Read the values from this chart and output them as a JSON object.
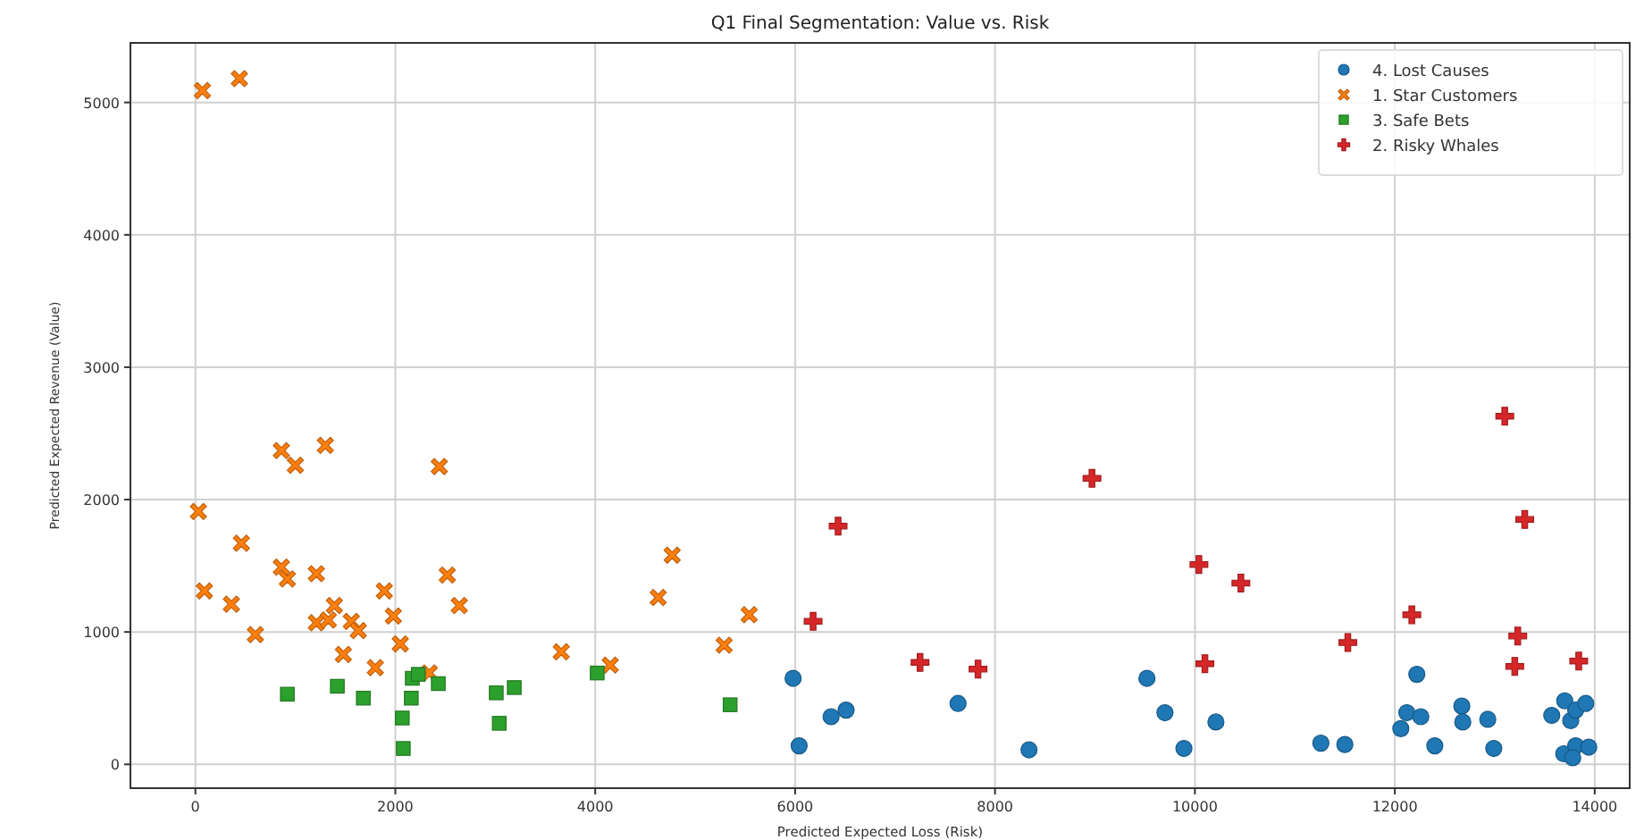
{
  "chart_data": {
    "type": "scatter",
    "title": "Q1 Final Segmentation: Value vs. Risk",
    "xlabel": "Predicted Expected Loss (Risk)",
    "ylabel": "Predicted Expected Revenue (Value)",
    "xlim": [
      -650,
      14350
    ],
    "ylim": [
      -180,
      5450
    ],
    "xticks": [
      0,
      2000,
      4000,
      6000,
      8000,
      10000,
      12000,
      14000
    ],
    "yticks": [
      0,
      1000,
      2000,
      3000,
      4000,
      5000
    ],
    "grid": true,
    "legend": "top right",
    "series": [
      {
        "name": "4. Lost Causes",
        "color": "#1f77b4",
        "marker": "circle",
        "x": [
          5980,
          6040,
          6360,
          6510,
          7630,
          8340,
          9520,
          9700,
          9890,
          10210,
          11260,
          11500,
          12060,
          12120,
          12260,
          12220,
          12400,
          12670,
          12680,
          12930,
          12990,
          13570,
          13700,
          13760,
          13810,
          13910,
          13690,
          13810,
          13940,
          13780
        ],
        "values": [
          650,
          140,
          360,
          410,
          460,
          110,
          650,
          390,
          120,
          320,
          160,
          150,
          270,
          390,
          360,
          680,
          140,
          440,
          320,
          340,
          120,
          370,
          480,
          330,
          410,
          460,
          80,
          140,
          130,
          50
        ]
      },
      {
        "name": "1. Star Customers",
        "color": "#ff7f0e",
        "marker": "x",
        "x": [
          70,
          440,
          860,
          1000,
          1300,
          2440,
          30,
          460,
          860,
          920,
          1210,
          90,
          360,
          600,
          1390,
          1210,
          1330,
          1560,
          1630,
          1480,
          1890,
          1980,
          2050,
          1800,
          2520,
          2640,
          2340,
          3660,
          4150,
          4630,
          4770,
          5290,
          5540
        ],
        "values": [
          5090,
          5180,
          2370,
          2260,
          2410,
          2250,
          1910,
          1670,
          1490,
          1400,
          1440,
          1310,
          1210,
          980,
          1200,
          1070,
          1090,
          1080,
          1010,
          830,
          1310,
          1120,
          910,
          730,
          1430,
          1200,
          690,
          850,
          750,
          1260,
          1580,
          900,
          1130
        ]
      },
      {
        "name": "3. Safe Bets",
        "color": "#2ca02c",
        "marker": "square",
        "x": [
          920,
          1420,
          1680,
          2070,
          2080,
          2160,
          2170,
          2230,
          2430,
          3010,
          3190,
          3040,
          4020,
          5350
        ],
        "values": [
          530,
          590,
          500,
          350,
          120,
          500,
          650,
          680,
          610,
          540,
          580,
          310,
          690,
          450
        ]
      },
      {
        "name": "2. Risky Whales",
        "color": "#d62728",
        "marker": "cross",
        "x": [
          6180,
          6430,
          7250,
          7830,
          8970,
          10040,
          10100,
          10460,
          11530,
          12170,
          13100,
          13300,
          13230,
          13200,
          13840
        ],
        "values": [
          1080,
          1800,
          770,
          720,
          2160,
          1510,
          760,
          1370,
          920,
          1130,
          2630,
          1850,
          970,
          740,
          780
        ]
      }
    ]
  }
}
